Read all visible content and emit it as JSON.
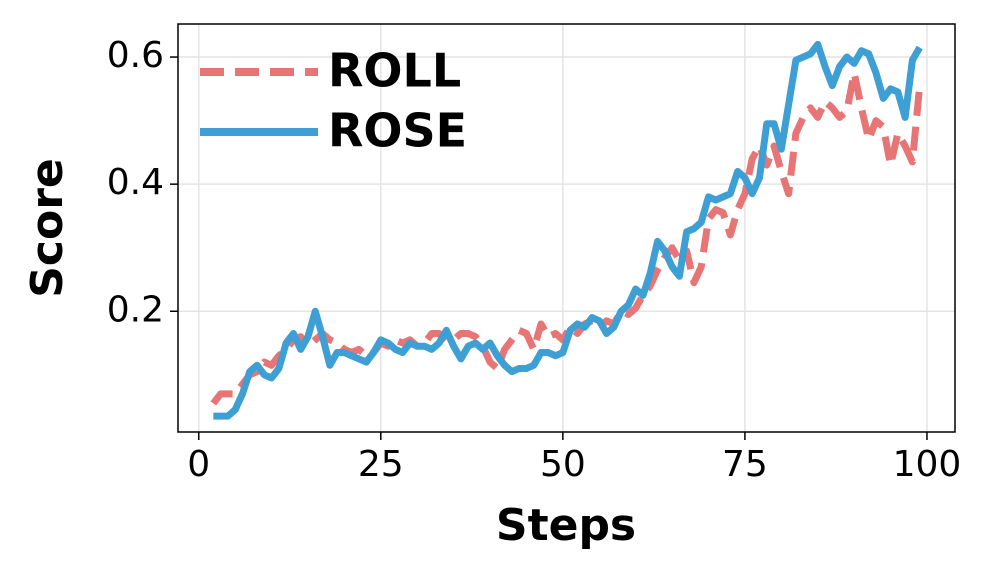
{
  "chart_data": {
    "type": "line",
    "x_label": "Steps",
    "y_label": "Score",
    "x": [
      2,
      3,
      4,
      5,
      6,
      7,
      8,
      9,
      10,
      11,
      12,
      13,
      14,
      15,
      16,
      17,
      18,
      19,
      20,
      21,
      22,
      23,
      24,
      25,
      26,
      27,
      28,
      29,
      30,
      31,
      32,
      33,
      34,
      35,
      36,
      37,
      38,
      39,
      40,
      41,
      42,
      43,
      44,
      45,
      46,
      47,
      48,
      49,
      50,
      51,
      52,
      53,
      54,
      55,
      56,
      57,
      58,
      59,
      60,
      61,
      62,
      63,
      64,
      65,
      66,
      67,
      68,
      69,
      70,
      71,
      72,
      73,
      74,
      75,
      76,
      77,
      78,
      79,
      80,
      81,
      82,
      83,
      84,
      85,
      86,
      87,
      88,
      89,
      90,
      91,
      92,
      93,
      94,
      95,
      96,
      97,
      98,
      99
    ],
    "series": [
      {
        "name": "ROLL",
        "color": "#e87575",
        "dash": true,
        "values": [
          0.055,
          0.07,
          0.07,
          0.07,
          0.085,
          0.1,
          0.105,
          0.12,
          0.115,
          0.13,
          0.14,
          0.155,
          0.16,
          0.145,
          0.155,
          0.165,
          0.155,
          0.15,
          0.14,
          0.135,
          0.14,
          0.13,
          0.135,
          0.15,
          0.145,
          0.155,
          0.15,
          0.155,
          0.145,
          0.15,
          0.165,
          0.165,
          0.155,
          0.155,
          0.165,
          0.165,
          0.16,
          0.145,
          0.12,
          0.11,
          0.14,
          0.155,
          0.17,
          0.165,
          0.14,
          0.18,
          0.16,
          0.165,
          0.155,
          0.175,
          0.165,
          0.18,
          0.185,
          0.175,
          0.185,
          0.18,
          0.2,
          0.195,
          0.205,
          0.225,
          0.24,
          0.265,
          0.285,
          0.3,
          0.28,
          0.295,
          0.245,
          0.27,
          0.345,
          0.36,
          0.355,
          0.32,
          0.36,
          0.385,
          0.44,
          0.46,
          0.43,
          0.46,
          0.42,
          0.385,
          0.48,
          0.505,
          0.52,
          0.505,
          0.53,
          0.52,
          0.505,
          0.515,
          0.575,
          0.52,
          0.47,
          0.5,
          0.49,
          0.43,
          0.48,
          0.46,
          0.435,
          0.555
        ]
      },
      {
        "name": "ROSE",
        "color": "#3d9fd3",
        "dash": false,
        "values": [
          0.035,
          0.035,
          0.035,
          0.045,
          0.07,
          0.105,
          0.115,
          0.1,
          0.095,
          0.11,
          0.15,
          0.165,
          0.14,
          0.16,
          0.2,
          0.16,
          0.115,
          0.135,
          0.135,
          0.13,
          0.125,
          0.12,
          0.135,
          0.155,
          0.15,
          0.14,
          0.135,
          0.15,
          0.145,
          0.145,
          0.14,
          0.15,
          0.17,
          0.145,
          0.125,
          0.145,
          0.15,
          0.14,
          0.15,
          0.13,
          0.115,
          0.105,
          0.11,
          0.11,
          0.115,
          0.135,
          0.135,
          0.13,
          0.135,
          0.17,
          0.18,
          0.175,
          0.19,
          0.185,
          0.165,
          0.175,
          0.2,
          0.21,
          0.235,
          0.225,
          0.26,
          0.31,
          0.295,
          0.27,
          0.255,
          0.325,
          0.33,
          0.34,
          0.38,
          0.375,
          0.38,
          0.385,
          0.42,
          0.41,
          0.385,
          0.41,
          0.495,
          0.495,
          0.455,
          0.525,
          0.595,
          0.6,
          0.605,
          0.62,
          0.585,
          0.555,
          0.585,
          0.6,
          0.59,
          0.61,
          0.605,
          0.575,
          0.535,
          0.55,
          0.545,
          0.505,
          0.595,
          0.615
        ]
      }
    ],
    "xlim": [
      -2.85,
      103.85
    ],
    "ylim": [
      0.01,
      0.652
    ],
    "xticks": [
      0,
      25,
      50,
      75,
      100
    ],
    "yticks": [
      0.2,
      0.4,
      0.6
    ],
    "grid": true,
    "legend": "upper left"
  }
}
